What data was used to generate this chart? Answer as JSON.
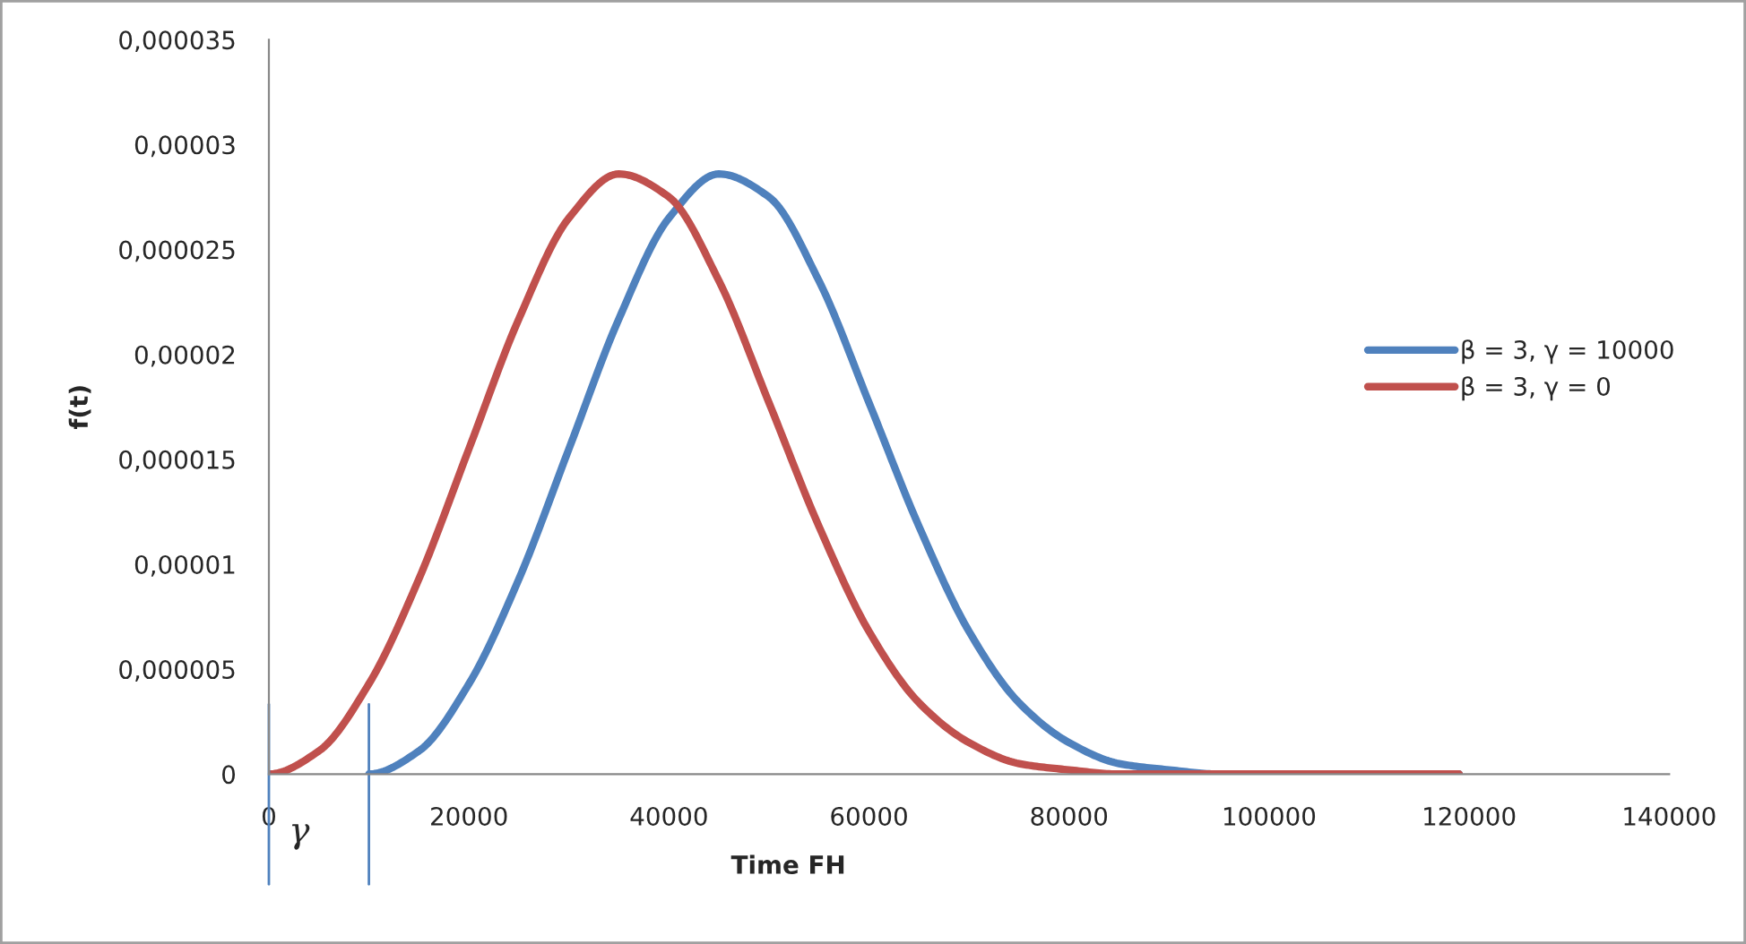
{
  "chart_data": {
    "type": "line",
    "xlabel": "Time FH",
    "ylabel": "f(t)",
    "xlim": [
      0,
      140000
    ],
    "xticks": [
      0,
      20000,
      40000,
      60000,
      80000,
      100000,
      120000,
      140000
    ],
    "ylim": [
      0,
      3.5e-05
    ],
    "yticks": [
      {
        "value": 0,
        "label": "0"
      },
      {
        "value": 5e-06,
        "label": "0,000005"
      },
      {
        "value": 1e-05,
        "label": "0,00001"
      },
      {
        "value": 1.5e-05,
        "label": "0,000015"
      },
      {
        "value": 2e-05,
        "label": "0,00002"
      },
      {
        "value": 2.5e-05,
        "label": "0,000025"
      },
      {
        "value": 3e-05,
        "label": "0,00003"
      },
      {
        "value": 3.5e-05,
        "label": "0,000035"
      }
    ],
    "series": [
      {
        "name": "β = 3, γ = 10000",
        "color": "#4f81bd",
        "x": [
          10000,
          15000,
          20000,
          25000,
          30000,
          35000,
          40000,
          45000,
          50000,
          55000,
          60000,
          65000,
          70000,
          75000,
          80000,
          85000,
          90000,
          95000,
          100000,
          119000
        ],
        "values": [
          0,
          1.1e-06,
          4.3e-06,
          9.3e-06,
          1.55e-05,
          2.17e-05,
          2.65e-05,
          2.86e-05,
          2.75e-05,
          2.35e-05,
          1.77e-05,
          1.18e-05,
          6.8e-06,
          3.4e-06,
          1.5e-06,
          5e-07,
          2e-07,
          0.0,
          0,
          0
        ]
      },
      {
        "name": "β = 3, γ = 0",
        "color": "#c0504d",
        "x": [
          0,
          5000,
          10000,
          15000,
          20000,
          25000,
          30000,
          35000,
          40000,
          45000,
          50000,
          55000,
          60000,
          65000,
          70000,
          75000,
          80000,
          85000,
          90000,
          119000
        ],
        "values": [
          0,
          1.1e-06,
          4.3e-06,
          9.3e-06,
          1.55e-05,
          2.17e-05,
          2.65e-05,
          2.86e-05,
          2.75e-05,
          2.35e-05,
          1.77e-05,
          1.18e-05,
          6.8e-06,
          3.4e-06,
          1.5e-06,
          5e-07,
          2e-07,
          0.0,
          0,
          0
        ]
      }
    ],
    "ref_lines": [
      {
        "axis": "x",
        "value": 0,
        "color": "#4f81bd"
      },
      {
        "axis": "x",
        "value": 10000,
        "label": "γ",
        "color": "#4f81bd"
      }
    ],
    "legend": "right",
    "grid": false,
    "marker": "none",
    "line_style": "solid"
  }
}
